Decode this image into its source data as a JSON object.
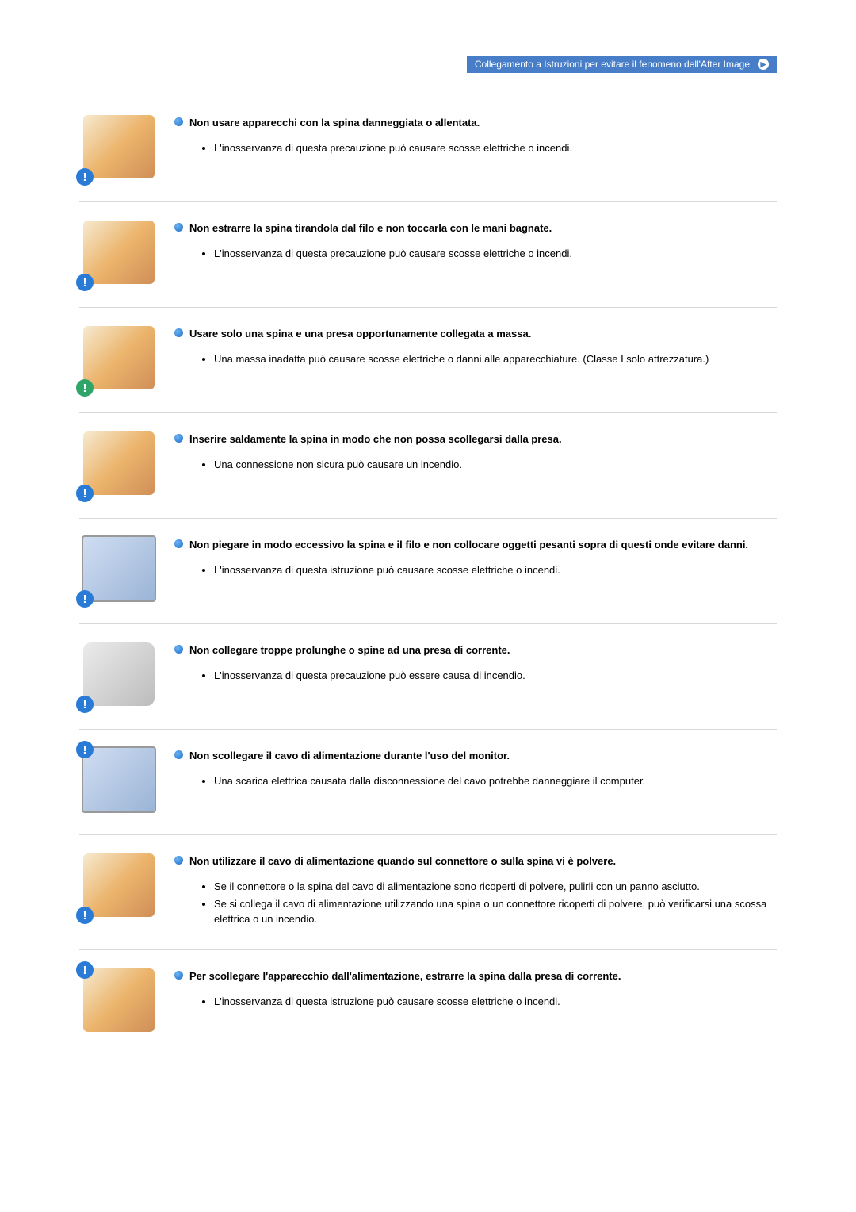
{
  "banner": {
    "text": "Collegamento a Istruzioni per evitare il fenomeno dell'After Image"
  },
  "items": [
    {
      "title": "Non usare apparecchi con la spina danneggiata o allentata.",
      "details": [
        "L'inosservanza di questa precauzione può causare scosse elettriche o incendi."
      ],
      "badge_color": "blue",
      "illus": "plug"
    },
    {
      "title": "Non estrarre la spina tirandola dal filo e non toccarla con le mani bagnate.",
      "details": [
        "L'inosservanza di questa precauzione può causare scosse elettriche o incendi."
      ],
      "badge_color": "blue",
      "illus": "plug"
    },
    {
      "title": "Usare solo una spina e una presa opportunamente collegata a massa.",
      "details": [
        "Una massa inadatta può causare scosse elettriche o danni alle apparecchiature. (Classe I solo attrezzatura.)"
      ],
      "badge_color": "green",
      "illus": "plug"
    },
    {
      "title": "Inserire saldamente la spina in modo che non possa scollegarsi dalla presa.",
      "details": [
        "Una connessione non sicura può causare un incendio."
      ],
      "badge_color": "blue",
      "illus": "plug"
    },
    {
      "title": "Non piegare in modo eccessivo la spina e il filo e non collocare oggetti pesanti sopra di questi onde evitare danni.",
      "details": [
        "L'inosservanza di questa istruzione può causare scosse elettriche o incendi."
      ],
      "badge_color": "blue",
      "illus": "monitor"
    },
    {
      "title": "Non collegare troppe prolunghe o spine ad una presa di corrente.",
      "details": [
        "L'inosservanza di questa precauzione può essere causa di incendio."
      ],
      "badge_color": "blue",
      "illus": "cord"
    },
    {
      "title": "Non scollegare il cavo di alimentazione durante l'uso del monitor.",
      "details": [
        "Una scarica elettrica causata dalla disconnessione del cavo potrebbe danneggiare il computer."
      ],
      "badge_color": "blue",
      "badge_pos": "topleft",
      "illus": "monitor"
    },
    {
      "title": "Non utilizzare il cavo di alimentazione quando sul connettore o sulla spina vi è polvere.",
      "details": [
        "Se il connettore o la spina del cavo di alimentazione sono ricoperti di polvere, pulirli con un panno asciutto.",
        "Se si collega il cavo di alimentazione utilizzando una spina o un connettore ricoperti di polvere, può verificarsi una scossa elettrica o un incendio."
      ],
      "badge_color": "blue",
      "illus": "plug"
    },
    {
      "title": "Per scollegare l'apparecchio dall'alimentazione, estrarre la spina dalla presa di corrente.",
      "details": [
        "L'inosservanza di questa istruzione può causare scosse elettriche o incendi."
      ],
      "badge_color": "blue",
      "badge_pos": "topleft",
      "illus": "plug"
    }
  ]
}
